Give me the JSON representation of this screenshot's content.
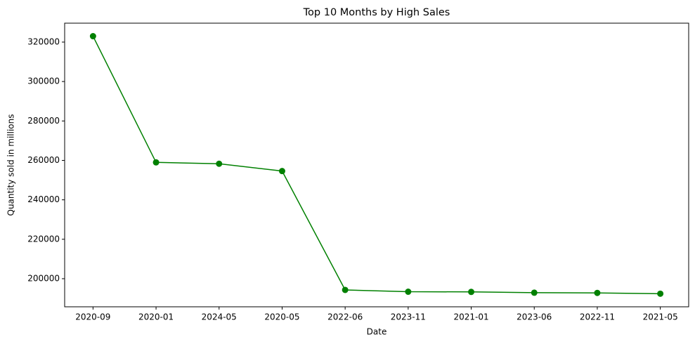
{
  "chart_data": {
    "type": "line",
    "title": "Top 10 Months by High Sales",
    "x_label": "Date",
    "y_label": "Quantity sold in millions",
    "categories": [
      "2020-09",
      "2020-01",
      "2024-05",
      "2020-05",
      "2022-06",
      "2023-11",
      "2021-01",
      "2023-06",
      "2022-11",
      "2021-05"
    ],
    "series": [
      {
        "color": "#008000",
        "values": [
          323000,
          259000,
          258300,
          254600,
          194300,
          193400,
          193300,
          192900,
          192800,
          192400
        ]
      }
    ],
    "ylim": [
      185750,
      329600
    ],
    "yticks": [
      200000,
      220000,
      240000,
      260000,
      280000,
      300000,
      320000
    ],
    "grid": false
  }
}
